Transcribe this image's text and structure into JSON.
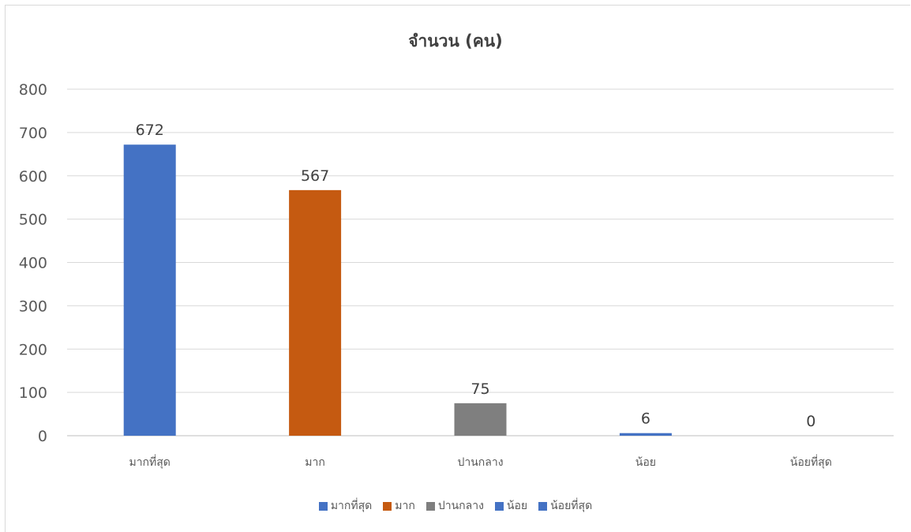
{
  "chart_data": {
    "type": "bar",
    "title": "จำนวน (คน)",
    "categories": [
      "มากที่สุด",
      "มาก",
      "ปานกลาง",
      "น้อย",
      "น้อยที่สุด"
    ],
    "values": [
      672,
      567,
      75,
      6,
      0
    ],
    "data_labels": [
      "672",
      "567",
      "75",
      "6",
      "0"
    ],
    "colors": [
      "#4472C4",
      "#C55A11",
      "#7F7F7F",
      "#4472C4",
      "#4472C4"
    ],
    "ylim": [
      0,
      800
    ],
    "yticks": [
      0,
      100,
      200,
      300,
      400,
      500,
      600,
      700,
      800
    ],
    "grid": true,
    "legend_position": "bottom"
  }
}
